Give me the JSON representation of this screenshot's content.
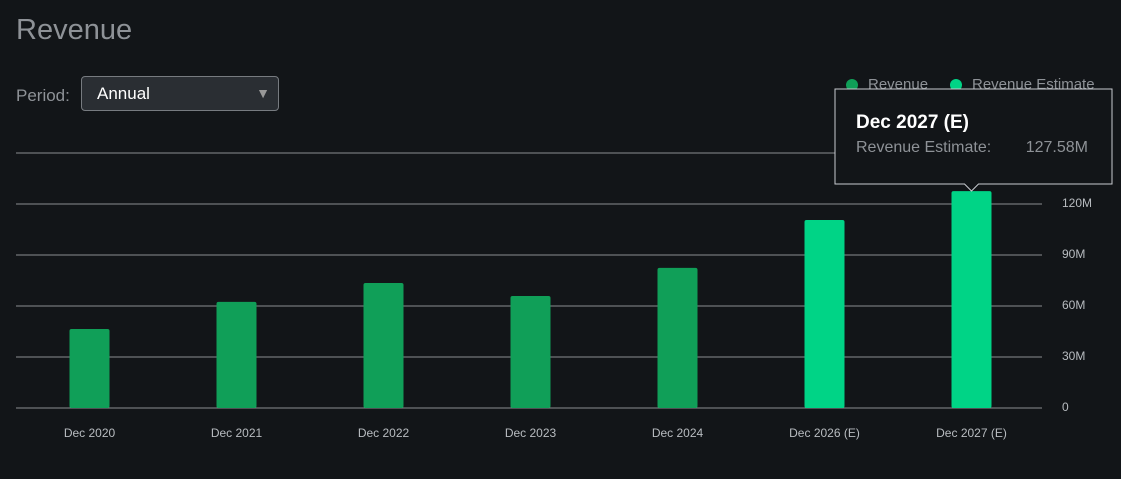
{
  "header": {
    "title": "Revenue",
    "period_label": "Period:",
    "period_value": "Annual"
  },
  "chart_data": {
    "type": "bar",
    "categories": [
      "Dec 2020",
      "Dec 2021",
      "Dec 2022",
      "Dec 2023",
      "Dec 2024",
      "Dec 2026 (E)",
      "Dec 2027 (E)"
    ],
    "series": [
      {
        "name": "Revenue",
        "color": "#109f58",
        "values": [
          46.5,
          62.4,
          73.5,
          65.9,
          82.4,
          null,
          null
        ]
      },
      {
        "name": "Revenue Estimate",
        "color": "#00d486",
        "values": [
          null,
          null,
          null,
          null,
          null,
          110.6,
          127.58
        ],
        "value_labels": [
          null,
          null,
          null,
          null,
          null,
          null,
          "127.58M"
        ]
      }
    ],
    "ylim": [
      0,
      150
    ],
    "yticks": [
      0,
      {
        "value": 30,
        "label": "30M"
      },
      {
        "value": 60,
        "label": "60M"
      },
      {
        "value": 90,
        "label": "90M"
      },
      {
        "value": 120,
        "label": "120M"
      }
    ],
    "grid": true,
    "legend": "top-right",
    "tooltip": {
      "label": "Revenue Estimate:"
    }
  }
}
